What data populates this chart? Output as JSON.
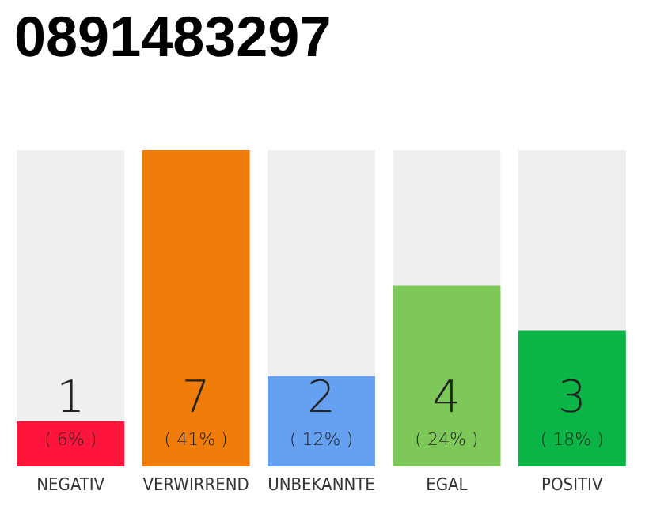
{
  "chart_data": {
    "type": "bar",
    "title": "0891483297",
    "categories": [
      "NEGATIV",
      "VERWIRREND",
      "UNBEKANNTE",
      "EGAL",
      "POSITIV"
    ],
    "values": [
      1,
      7,
      2,
      4,
      3
    ],
    "colors": [
      "#ff143c",
      "#f07d0a",
      "#66a0f0",
      "#7ec85a",
      "#0ab446"
    ],
    "value_labels": [
      "1\n( 6% )",
      "7\n( 41% )",
      "2\n( 12% )",
      "4\n( 24% )",
      "3\n( 18% )"
    ]
  }
}
